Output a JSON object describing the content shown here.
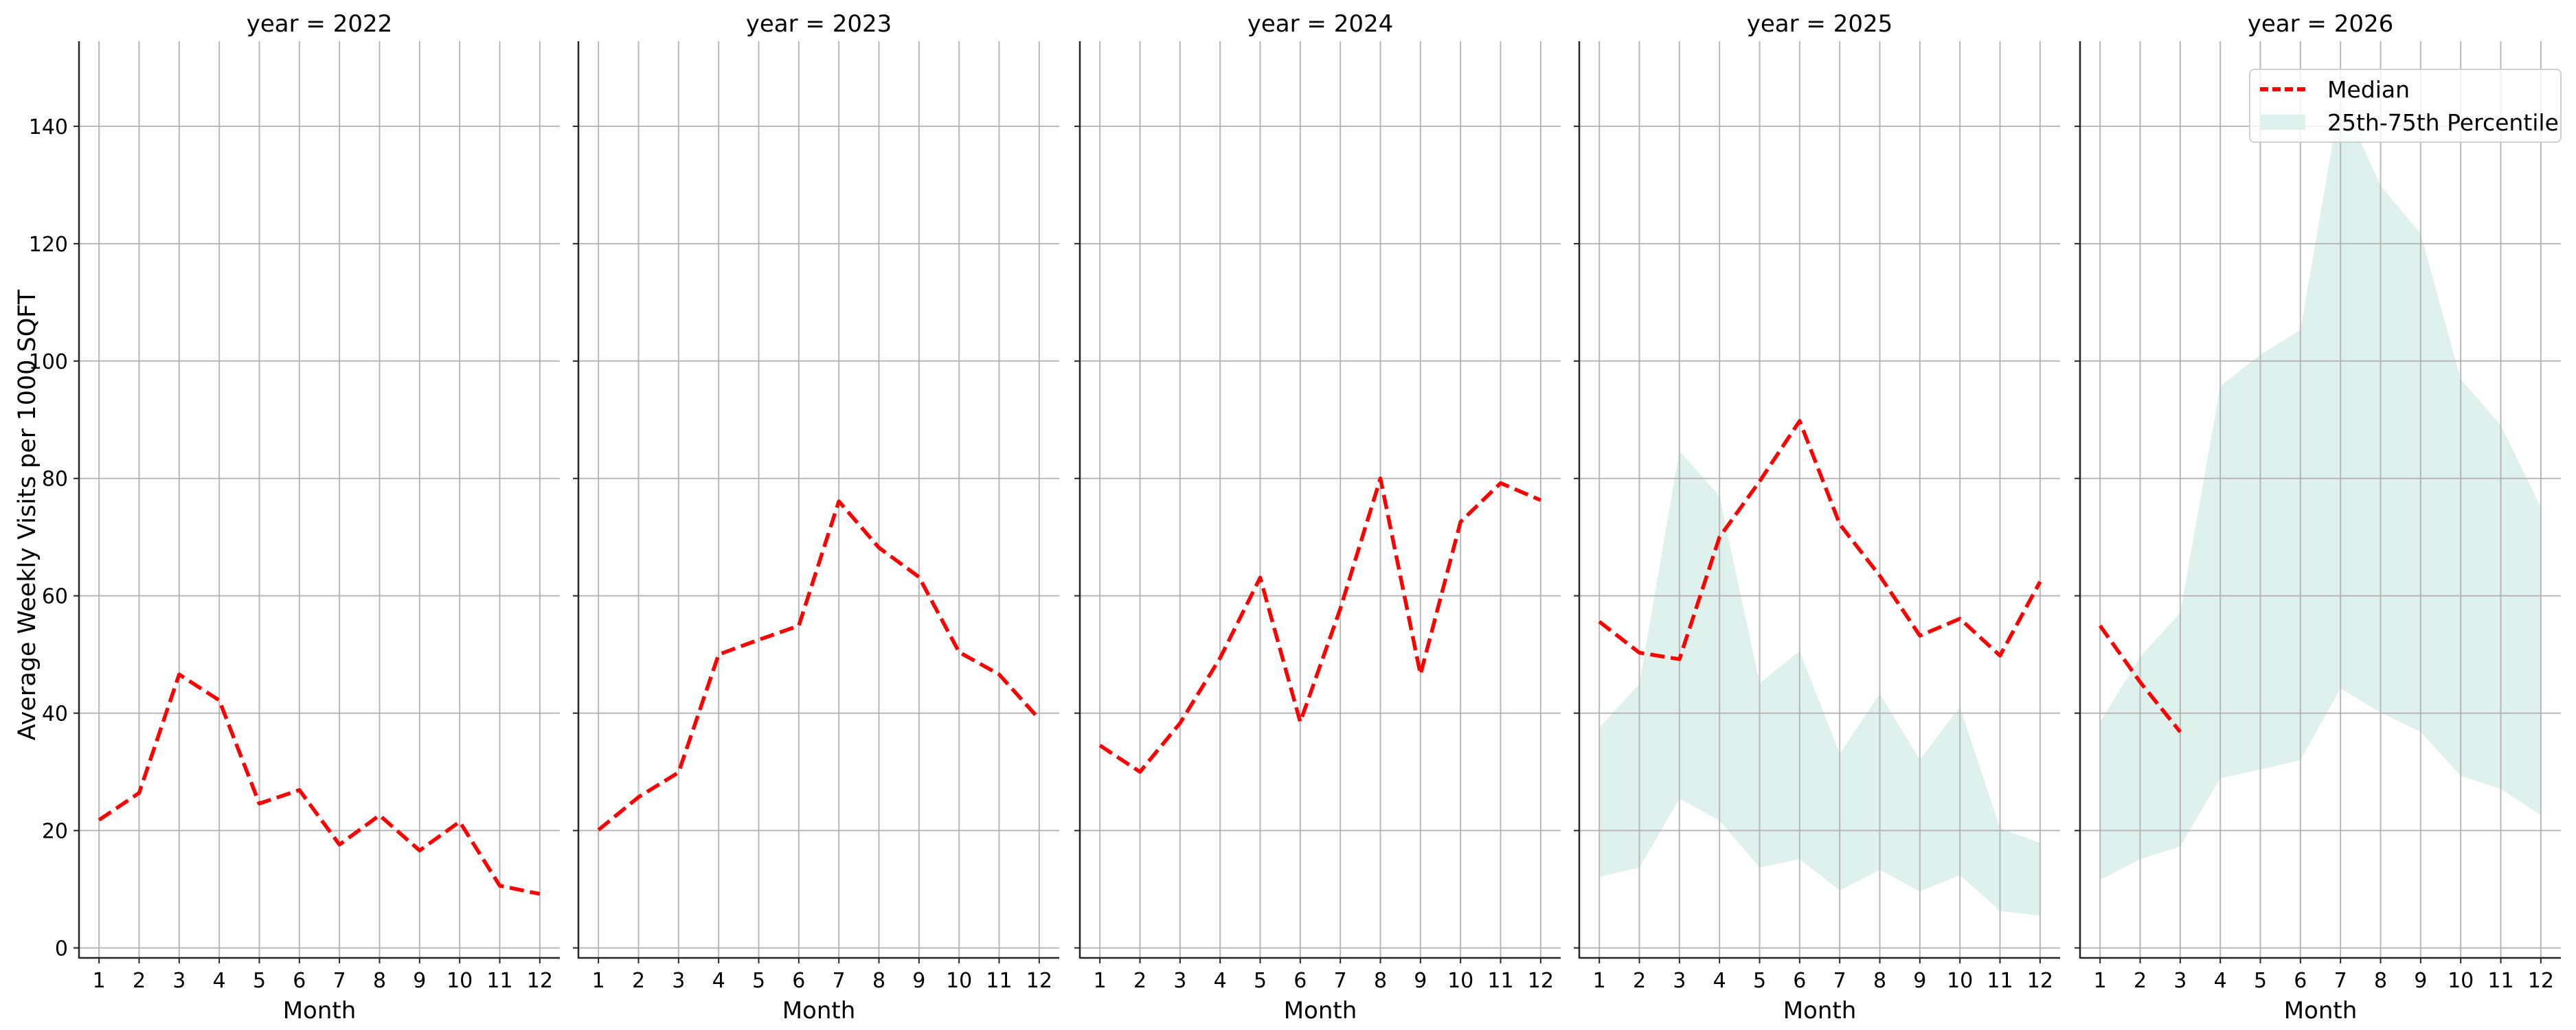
{
  "chart_data": {
    "type": "line",
    "layout": "facet-columns",
    "facet_variable": "year",
    "ylabel": "Average Weekly Visits per 1000 SQFT",
    "xlabel": "Month",
    "x": [
      1,
      2,
      3,
      4,
      5,
      6,
      7,
      8,
      9,
      10,
      11,
      12
    ],
    "x_ticks": [
      "1",
      "2",
      "3",
      "4",
      "5",
      "6",
      "7",
      "8",
      "9",
      "10",
      "11",
      "12"
    ],
    "y_ticks": [
      0,
      20,
      40,
      60,
      80,
      100,
      120,
      140
    ],
    "ylim": [
      -1.7,
      154.5
    ],
    "grid": true,
    "legend": {
      "position": "upper right (last panel)",
      "entries": [
        {
          "label": "Median",
          "style": "dashed line",
          "color": "#ff0000"
        },
        {
          "label": "25th-75th Percentile",
          "style": "filled band",
          "color": "#dff1ec"
        }
      ]
    },
    "colors": {
      "median": "#ff0000",
      "band": "#dff1ec",
      "grid": "#b0b0b0",
      "axis": "#262626"
    },
    "panels": [
      {
        "title": "year = 2022",
        "median": [
          21.8,
          26.4,
          46.6,
          42.2,
          24.6,
          26.9,
          17.6,
          22.6,
          16.6,
          21.5,
          10.6,
          9.2
        ],
        "p25": null,
        "p75": null
      },
      {
        "title": "year = 2023",
        "median": [
          20.1,
          25.7,
          29.9,
          50.0,
          52.5,
          54.9,
          76.1,
          68.2,
          63.2,
          50.4,
          46.6,
          39.0
        ],
        "p25": null,
        "p75": null
      },
      {
        "title": "year = 2024",
        "median": [
          34.5,
          30.0,
          38.3,
          49.4,
          63.1,
          38.5,
          57.8,
          80.0,
          46.6,
          72.6,
          79.2,
          76.3
        ],
        "p25": null,
        "p75": null
      },
      {
        "title": "year = 2025",
        "median": [
          55.6,
          50.3,
          49.2,
          70.0,
          79.5,
          89.8,
          72.2,
          63.4,
          53.2,
          56.1,
          49.8,
          62.4
        ],
        "p25": [
          12.1,
          13.7,
          25.4,
          21.7,
          13.7,
          15.1,
          9.8,
          13.3,
          9.6,
          12.4,
          6.3,
          5.5
        ],
        "p75": [
          37.5,
          45.0,
          84.7,
          77.0,
          45.1,
          50.6,
          33.1,
          43.3,
          32.1,
          41.1,
          20.4,
          17.9
        ]
      },
      {
        "title": "year = 2026",
        "median": [
          54.9,
          45.3,
          36.8,
          null,
          null,
          null,
          null,
          null,
          null,
          null,
          null,
          null
        ],
        "p25": [
          11.6,
          15.1,
          17.3,
          28.9,
          30.4,
          32.0,
          44.2,
          40.1,
          36.8,
          29.3,
          27.1,
          22.6
        ],
        "p75": [
          38.5,
          49.6,
          57.1,
          95.7,
          101.1,
          105.3,
          144.9,
          129.9,
          121.7,
          96.9,
          89.1,
          75.1
        ]
      }
    ]
  }
}
